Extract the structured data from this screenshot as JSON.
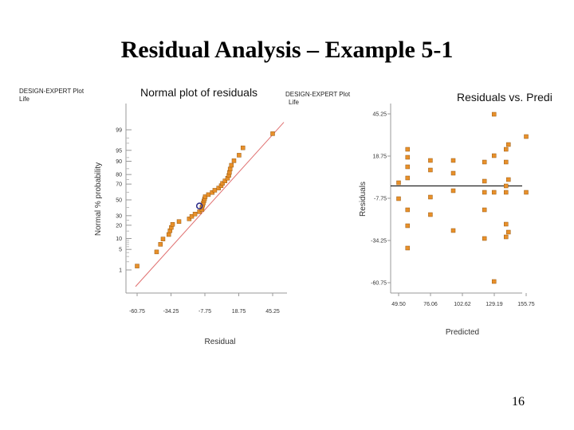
{
  "slide": {
    "title": "Residual Analysis – Example 5-1",
    "page_number": "16"
  },
  "chart_data": [
    {
      "type": "scatter",
      "design_expert_label": "DESIGN-EXPERT Plot",
      "response": "Life",
      "title": "Normal plot of residuals",
      "xlabel": "Residual",
      "ylabel": "Normal % probability",
      "x_ticks": [
        "-60.75",
        "-34.25",
        "-7.75",
        "18.75",
        "45.25"
      ],
      "y_ticks": [
        "1",
        "5",
        "10",
        "20",
        "30",
        "50",
        "70",
        "80",
        "90",
        "95",
        "99"
      ],
      "xlim": [
        -60.75,
        45.25
      ],
      "y_scale": "normal-probability",
      "reference_line": {
        "x": [
          -62,
          54
        ],
        "p": [
          0.2,
          99.5
        ]
      },
      "point_color": "#e8902a",
      "line_color": "#e07070",
      "points": [
        {
          "x": -60.75,
          "p": 1.4
        },
        {
          "x": -45.5,
          "p": 4.2
        },
        {
          "x": -42.5,
          "p": 7
        },
        {
          "x": -40.5,
          "p": 9.7
        },
        {
          "x": -36,
          "p": 12.5
        },
        {
          "x": -35,
          "p": 15.3
        },
        {
          "x": -34,
          "p": 18
        },
        {
          "x": -33,
          "p": 20.8
        },
        {
          "x": -28,
          "p": 23.6
        },
        {
          "x": -20,
          "p": 26.4
        },
        {
          "x": -18,
          "p": 29.2
        },
        {
          "x": -15.5,
          "p": 31.9
        },
        {
          "x": -12,
          "p": 34.7
        },
        {
          "x": -10,
          "p": 37.5
        },
        {
          "x": -10,
          "p": 40.3
        },
        {
          "x": -9.5,
          "p": 43.1
        },
        {
          "x": -9,
          "p": 45.8
        },
        {
          "x": -8.5,
          "p": 48.6
        },
        {
          "x": -8,
          "p": 51.4
        },
        {
          "x": -7.5,
          "p": 54.2
        },
        {
          "x": -5,
          "p": 56.9
        },
        {
          "x": -2,
          "p": 59.7
        },
        {
          "x": 0,
          "p": 62.5
        },
        {
          "x": 3,
          "p": 65.3
        },
        {
          "x": 5,
          "p": 68.1
        },
        {
          "x": 6,
          "p": 70.8
        },
        {
          "x": 8,
          "p": 73.6
        },
        {
          "x": 10,
          "p": 76.4
        },
        {
          "x": 11,
          "p": 79.2
        },
        {
          "x": 11.5,
          "p": 81.9
        },
        {
          "x": 12,
          "p": 84.7
        },
        {
          "x": 13,
          "p": 87.5
        },
        {
          "x": 15,
          "p": 90.3
        },
        {
          "x": 19,
          "p": 93.1
        },
        {
          "x": 22,
          "p": 95.8
        },
        {
          "x": 45.25,
          "p": 98.6
        }
      ],
      "highlight_point": {
        "x": -12,
        "p": 42
      }
    },
    {
      "type": "scatter",
      "design_expert_label": "DESIGN-EXPERT Plot",
      "response": "Life",
      "title": "Residuals vs. Predi",
      "xlabel": "Predicted",
      "ylabel": "Residuals",
      "x_ticks": [
        "49.50",
        "76.06",
        "102.62",
        "129.19",
        "155.75"
      ],
      "y_ticks": [
        "45.25",
        "18.75",
        "-7.75",
        "-34.25",
        "-60.75"
      ],
      "xlim": [
        49.5,
        155.75
      ],
      "ylim": [
        -60.75,
        45.25
      ],
      "zero_line": 0,
      "point_color": "#e8902a",
      "points": [
        {
          "x": 49.5,
          "y": 2
        },
        {
          "x": 49.5,
          "y": -8
        },
        {
          "x": 57,
          "y": 23
        },
        {
          "x": 57,
          "y": 18
        },
        {
          "x": 57,
          "y": 12
        },
        {
          "x": 57,
          "y": 5
        },
        {
          "x": 57,
          "y": -15
        },
        {
          "x": 57,
          "y": -25
        },
        {
          "x": 57,
          "y": -39
        },
        {
          "x": 76,
          "y": 16
        },
        {
          "x": 76,
          "y": 10
        },
        {
          "x": 76,
          "y": -7
        },
        {
          "x": 76,
          "y": -18
        },
        {
          "x": 95,
          "y": 16
        },
        {
          "x": 95,
          "y": 8
        },
        {
          "x": 95,
          "y": -3
        },
        {
          "x": 95,
          "y": -28
        },
        {
          "x": 121,
          "y": 15
        },
        {
          "x": 121,
          "y": 3
        },
        {
          "x": 121,
          "y": -4
        },
        {
          "x": 121,
          "y": -15
        },
        {
          "x": 121,
          "y": -33
        },
        {
          "x": 129,
          "y": 45
        },
        {
          "x": 129,
          "y": 19
        },
        {
          "x": 129,
          "y": -4
        },
        {
          "x": 129,
          "y": -60
        },
        {
          "x": 139,
          "y": 23
        },
        {
          "x": 139,
          "y": 15
        },
        {
          "x": 139,
          "y": 0
        },
        {
          "x": 139,
          "y": -4
        },
        {
          "x": 139,
          "y": -24
        },
        {
          "x": 139,
          "y": -32
        },
        {
          "x": 141,
          "y": 26
        },
        {
          "x": 141,
          "y": 4
        },
        {
          "x": 141,
          "y": -29
        },
        {
          "x": 155.75,
          "y": 31
        },
        {
          "x": 155.75,
          "y": -4
        }
      ]
    }
  ]
}
